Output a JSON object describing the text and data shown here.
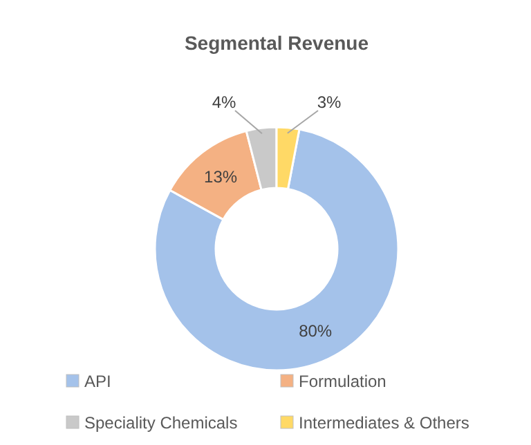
{
  "chart_data": {
    "type": "donut",
    "title": "Segmental Revenue",
    "categories": [
      "API",
      "Formulation",
      "Speciality Chemicals",
      "Intermediates & Others"
    ],
    "values": [
      80,
      13,
      4,
      3
    ],
    "colors": [
      "#a4c2ea",
      "#f4b183",
      "#c9c9c9",
      "#ffd966"
    ],
    "value_labels": [
      "80%",
      "13%",
      "4%",
      "3%"
    ],
    "legend": "bottom"
  }
}
